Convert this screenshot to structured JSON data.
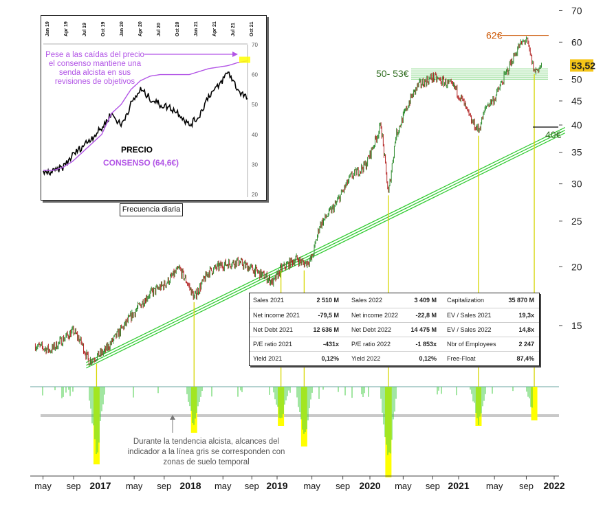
{
  "chart_data": [
    {
      "type": "line",
      "subtype": "candlestick",
      "scale": "log",
      "ylim": [
        12,
        72
      ],
      "y_ticks": [
        "70",
        "60",
        "50",
        "45",
        "40",
        "35",
        "30",
        "25",
        "20",
        "15"
      ],
      "x_ticks": [
        "may",
        "sep",
        "2017",
        "may",
        "sep",
        "2018",
        "may",
        "sep",
        "2019",
        "may",
        "sep",
        "2020",
        "may",
        "sep",
        "2021",
        "may",
        "sep",
        "2022"
      ],
      "current_price_label": "53,52",
      "price_points": [
        {
          "date": "2016-04",
          "value": 13.6
        },
        {
          "date": "2016-06",
          "value": 13.3
        },
        {
          "date": "2016-08",
          "value": 14.2
        },
        {
          "date": "2016-09",
          "value": 14.6
        },
        {
          "date": "2016-10",
          "value": 13.8
        },
        {
          "date": "2016-11",
          "value": 12.6
        },
        {
          "date": "2016-12",
          "value": 12.9
        },
        {
          "date": "2017-01",
          "value": 13.2
        },
        {
          "date": "2017-03",
          "value": 14.5
        },
        {
          "date": "2017-05",
          "value": 16.0
        },
        {
          "date": "2017-07",
          "value": 17.5
        },
        {
          "date": "2017-09",
          "value": 18.3
        },
        {
          "date": "2017-11",
          "value": 19.8
        },
        {
          "date": "2017-12",
          "value": 18.6
        },
        {
          "date": "2018-01",
          "value": 17.2
        },
        {
          "date": "2018-03",
          "value": 19.5
        },
        {
          "date": "2018-05",
          "value": 20.2
        },
        {
          "date": "2018-07",
          "value": 20.5
        },
        {
          "date": "2018-09",
          "value": 19.8
        },
        {
          "date": "2018-11",
          "value": 19.0
        },
        {
          "date": "2018-12",
          "value": 18.5
        },
        {
          "date": "2019-01",
          "value": 19.8
        },
        {
          "date": "2019-03",
          "value": 20.8
        },
        {
          "date": "2019-04",
          "value": 20.3
        },
        {
          "date": "2019-05",
          "value": 20.8
        },
        {
          "date": "2019-06",
          "value": 24.5
        },
        {
          "date": "2019-08",
          "value": 27.0
        },
        {
          "date": "2019-10",
          "value": 31.0
        },
        {
          "date": "2019-12",
          "value": 33.0
        },
        {
          "date": "2020-02",
          "value": 40.0
        },
        {
          "date": "2020-03",
          "value": 28.5
        },
        {
          "date": "2020-04",
          "value": 38.0
        },
        {
          "date": "2020-06",
          "value": 45.5
        },
        {
          "date": "2020-07",
          "value": 48.5
        },
        {
          "date": "2020-09",
          "value": 50.5
        },
        {
          "date": "2020-11",
          "value": 49.0
        },
        {
          "date": "2020-12",
          "value": 48.0
        },
        {
          "date": "2021-01",
          "value": 45.0
        },
        {
          "date": "2021-02",
          "value": 41.0
        },
        {
          "date": "2021-03",
          "value": 39.0
        },
        {
          "date": "2021-04",
          "value": 44.0
        },
        {
          "date": "2021-05",
          "value": 45.5
        },
        {
          "date": "2021-06",
          "value": 49.5
        },
        {
          "date": "2021-07",
          "value": 54.0
        },
        {
          "date": "2021-08",
          "value": 58.5
        },
        {
          "date": "2021-09",
          "value": 61.0
        },
        {
          "date": "2021-10",
          "value": 52.0
        },
        {
          "date": "2021-11",
          "value": 53.52
        }
      ],
      "annotations": [
        {
          "text": "62€",
          "level": 62
        },
        {
          "text": "50- 53€",
          "range": [
            50,
            53
          ]
        },
        {
          "text": "40€",
          "level": 40
        }
      ],
      "trendline": {
        "start": {
          "date": "2016-11",
          "value": 12.6
        },
        "end": {
          "date": "2022-01",
          "value": 39.0
        }
      },
      "support_touches": [
        "2016-12",
        "2018-01",
        "2019-01",
        "2019-04",
        "2020-03",
        "2021-03",
        "2021-10"
      ]
    },
    {
      "type": "bar",
      "title": "",
      "note": "Durante la tendencia alcista, alcances del indicador a la línea gris se corresponden con zonas de suelo temporal",
      "highlight_dates": [
        "2016-12",
        "2018-01",
        "2019-01",
        "2019-04",
        "2020-03",
        "2021-03",
        "2021-10"
      ]
    },
    {
      "type": "line",
      "title": "Frecuencia diaria",
      "x_ticks": [
        "Jan 19",
        "Apr 19",
        "Jul 19",
        "Oct 19",
        "Jan 20",
        "Apr 20",
        "Jul 20",
        "Oct 20",
        "Jan 21",
        "Apr 21",
        "Jul 21",
        "Oct 21"
      ],
      "y_ticks": [
        "70",
        "60",
        "50",
        "40",
        "30",
        "20"
      ],
      "ylim": [
        20,
        70
      ],
      "series": [
        {
          "name": "PRECIO",
          "color": "#000000",
          "points": [
            [
              0,
              27
            ],
            [
              1,
              27.5
            ],
            [
              2,
              29
            ],
            [
              3,
              33
            ],
            [
              4,
              36
            ],
            [
              5,
              39
            ],
            [
              6,
              42
            ],
            [
              7,
              47
            ],
            [
              8,
              43
            ],
            [
              9,
              50
            ],
            [
              10,
              55
            ],
            [
              11,
              52
            ],
            [
              12,
              50
            ],
            [
              13,
              49
            ],
            [
              14,
              47
            ],
            [
              15,
              43
            ],
            [
              16,
              46
            ],
            [
              17,
              53
            ],
            [
              18,
              56
            ],
            [
              19,
              61
            ],
            [
              20,
              55
            ],
            [
              21,
              52
            ]
          ]
        },
        {
          "name": "CONSENSO (64,6€)",
          "color": "#b255e6",
          "points": [
            [
              0,
              28
            ],
            [
              1,
              28
            ],
            [
              2,
              29
            ],
            [
              3,
              31
            ],
            [
              4,
              34
            ],
            [
              5,
              37
            ],
            [
              6,
              40
            ],
            [
              7,
              47
            ],
            [
              8,
              50
            ],
            [
              9,
              55
            ],
            [
              10,
              58
            ],
            [
              11,
              59.5
            ],
            [
              12,
              60
            ],
            [
              13,
              60
            ],
            [
              14,
              60
            ],
            [
              15,
              60
            ],
            [
              16,
              61
            ],
            [
              17,
              62
            ],
            [
              18,
              62.5
            ],
            [
              19,
              63
            ],
            [
              20,
              64
            ],
            [
              21,
              64.6
            ]
          ]
        }
      ],
      "annotation": "Pese a las caídas del precio el consenso mantiene una senda alcista en sus revisiones de objetivos"
    }
  ],
  "stats": [
    [
      {
        "label": "Sales 2021",
        "value": "2 510 M"
      },
      {
        "label": "Sales 2022",
        "value": "3 409 M"
      },
      {
        "label": "Capitalization",
        "value": "35 870 M"
      }
    ],
    [
      {
        "label": "Net income 2021",
        "value": "-79,5 M"
      },
      {
        "label": "Net income 2022",
        "value": "-22,8 M"
      },
      {
        "label": "EV / Sales 2021",
        "value": "19,3x"
      }
    ],
    [
      {
        "label": "Net Debt 2021",
        "value": "12 636 M"
      },
      {
        "label": "Net Debt 2022",
        "value": "14 475 M"
      },
      {
        "label": "EV / Sales 2022",
        "value": "14,8x"
      }
    ],
    [
      {
        "label": "P/E ratio 2021",
        "value": "-431x"
      },
      {
        "label": "P/E ratio 2022",
        "value": "-1 853x"
      },
      {
        "label": "Nbr of Employees",
        "value": "2 247"
      }
    ],
    [
      {
        "label": "Yield 2021",
        "value": "0,12%"
      },
      {
        "label": "Yield 2022",
        "value": "0,12%"
      },
      {
        "label": "Free-Float",
        "value": "87,4%"
      }
    ]
  ],
  "colors": {
    "up_candle": "#2e8b2e",
    "down_candle": "#b22222",
    "trendline": "#33cc33",
    "support_zone": "#7fd67f",
    "highlight": "#ffff00",
    "vline": "#d6d600",
    "annotation_orange": "#cc5500",
    "annotation_green": "#2e6b1e",
    "consensus": "#b255e6",
    "price_tag": "#f5c518"
  }
}
